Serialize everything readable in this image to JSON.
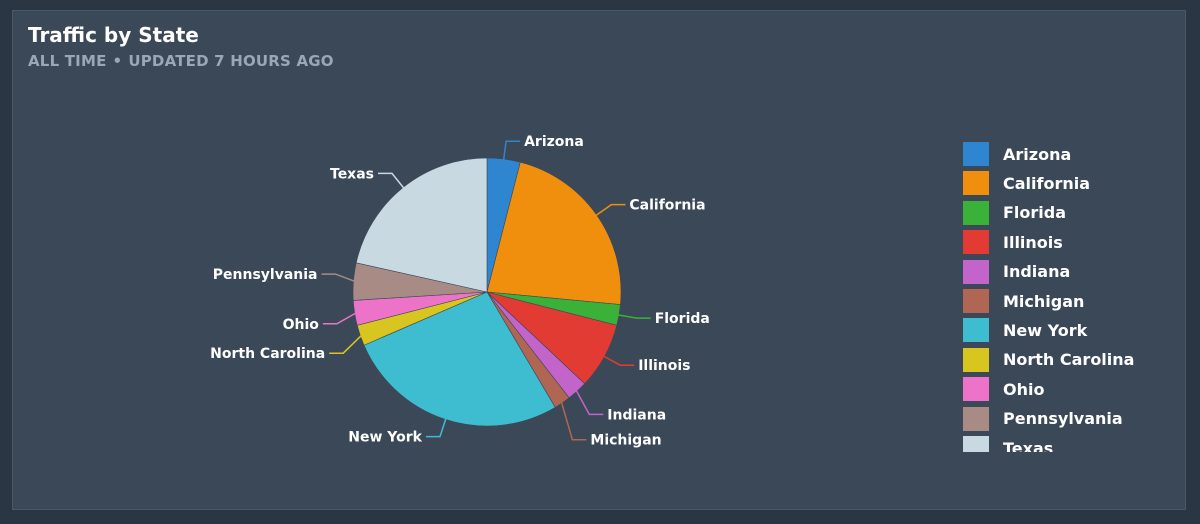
{
  "header": {
    "title": "Traffic by State",
    "range": "ALL TIME",
    "separator": "•",
    "updated": "UPDATED 7 HOURS AGO"
  },
  "chart_data": {
    "type": "pie",
    "title": "Traffic by State",
    "legend_position": "right",
    "slices": [
      {
        "label": "Arizona",
        "value": 4,
        "color": "#2f86d0"
      },
      {
        "label": "California",
        "value": 22.5,
        "color": "#f08f0e"
      },
      {
        "label": "Florida",
        "value": 2.5,
        "color": "#3ab23a"
      },
      {
        "label": "Illinois",
        "value": 8,
        "color": "#e23b33"
      },
      {
        "label": "Indiana",
        "value": 2.5,
        "color": "#c264c9"
      },
      {
        "label": "Michigan",
        "value": 2,
        "color": "#b06652"
      },
      {
        "label": "New York",
        "value": 27,
        "color": "#3ebdd1"
      },
      {
        "label": "North Carolina",
        "value": 2.5,
        "color": "#d8c51f"
      },
      {
        "label": "Ohio",
        "value": 3,
        "color": "#ec73c8"
      },
      {
        "label": "Pennsylvania",
        "value": 4.5,
        "color": "#a88b85"
      },
      {
        "label": "Texas",
        "value": 21.5,
        "color": "#c9d9e2"
      }
    ]
  }
}
